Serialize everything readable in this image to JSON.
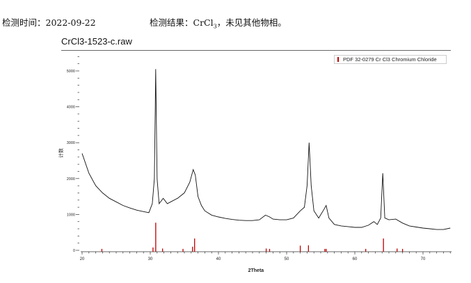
{
  "header": {
    "date_label": "检测时间：2022-09-22",
    "result_prefix": "检测结果：CrCl",
    "result_sub": "3",
    "result_suffix": "，未见其他物相。"
  },
  "chart_data": {
    "type": "line",
    "title": "CrCl3-1523-c.raw",
    "xlabel": "2Theta",
    "ylabel": "计数",
    "xlim": [
      19.8,
      74.2
    ],
    "ylim": [
      0,
      5500
    ],
    "xticks": [
      20,
      30,
      40,
      50,
      60,
      70
    ],
    "yticks": [
      0,
      1000,
      2000,
      3000,
      4000,
      5000
    ],
    "grid": false,
    "legend": {
      "position": "top-right",
      "entries": [
        "PDF 32-0279 Cr Cl3 Chromium Chloride"
      ]
    },
    "colors": {
      "pattern": "#111111",
      "reference": "#c00000"
    },
    "series": [
      {
        "type": "line",
        "x": [
          20,
          21,
          22,
          23,
          24,
          25,
          26,
          27,
          28,
          29,
          29.8,
          30.3,
          30.6,
          30.8,
          31.0,
          31.3,
          31.9,
          32.5,
          33,
          34,
          35,
          35.8,
          36.3,
          36.6,
          37,
          37.5,
          38,
          39,
          40,
          41,
          42,
          43,
          44,
          45,
          46,
          46.9,
          47.5,
          48,
          49,
          50,
          51,
          52,
          52.6,
          53.0,
          53.3,
          53.6,
          54,
          54.7,
          55.5,
          55.8,
          56.2,
          57,
          58,
          59,
          60,
          61,
          62,
          62.8,
          63.3,
          63.8,
          64.1,
          64.4,
          65,
          66,
          67,
          68,
          69,
          70,
          71,
          72,
          73,
          74
        ],
        "y": [
          2700,
          2150,
          1800,
          1600,
          1450,
          1350,
          1250,
          1180,
          1120,
          1080,
          1050,
          1300,
          2000,
          5050,
          2000,
          1300,
          1450,
          1300,
          1350,
          1450,
          1600,
          1900,
          2250,
          2100,
          1500,
          1250,
          1100,
          980,
          930,
          890,
          860,
          840,
          830,
          830,
          850,
          980,
          930,
          870,
          850,
          850,
          900,
          1100,
          1200,
          1800,
          3000,
          1800,
          1100,
          900,
          1150,
          1250,
          900,
          720,
          680,
          660,
          640,
          640,
          700,
          800,
          720,
          900,
          2150,
          900,
          850,
          870,
          760,
          680,
          650,
          620,
          600,
          580,
          580,
          620
        ]
      },
      {
        "name": "PDF 32-0279 Cr Cl3 Chromium Chloride",
        "type": "sticks",
        "x": [
          22.9,
          30.4,
          30.8,
          31.8,
          34.8,
          36.2,
          36.5,
          47.0,
          47.5,
          52.0,
          53.2,
          55.6,
          55.8,
          61.6,
          64.2,
          66.2,
          67.0
        ],
        "y": [
          40,
          80,
          770,
          50,
          40,
          100,
          330,
          50,
          40,
          130,
          140,
          40,
          40,
          40,
          330,
          50,
          40
        ]
      }
    ]
  }
}
